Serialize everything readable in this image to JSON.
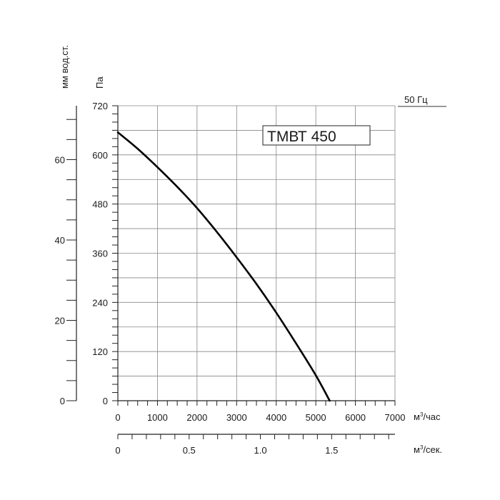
{
  "chart_data": {
    "type": "line",
    "model_label": "ТМВТ 450",
    "frequency_label": "50 Гц",
    "y_unit_pa": "Па",
    "y_unit_mm": "мм вод.ст.",
    "x_unit_hour_base": "м",
    "x_unit_hour_sup": "3",
    "x_unit_hour_suffix": "/час",
    "x_unit_sec_base": "м",
    "x_unit_sec_sup": "3",
    "x_unit_sec_suffix": "/сек.",
    "x_range": [
      0,
      7000
    ],
    "y_range": [
      0,
      720
    ],
    "x_ticks": [
      "0",
      "1000",
      "2000",
      "3000",
      "4000",
      "5000",
      "6000",
      "7000"
    ],
    "y_ticks_pa": [
      "0",
      "120",
      "240",
      "360",
      "480",
      "600",
      "720"
    ],
    "y_ticks_mm": [
      "0",
      "20",
      "40",
      "60"
    ],
    "x_ticks_sec": [
      "0",
      "0.5",
      "1.0",
      "1.5"
    ],
    "grid": true,
    "series": [
      {
        "points": [
          [
            0,
            655
          ],
          [
            500,
            615
          ],
          [
            1000,
            570
          ],
          [
            1500,
            522
          ],
          [
            2000,
            470
          ],
          [
            2500,
            412
          ],
          [
            3000,
            350
          ],
          [
            3500,
            285
          ],
          [
            4000,
            215
          ],
          [
            4500,
            140
          ],
          [
            5000,
            62
          ],
          [
            5350,
            0
          ]
        ]
      }
    ]
  }
}
